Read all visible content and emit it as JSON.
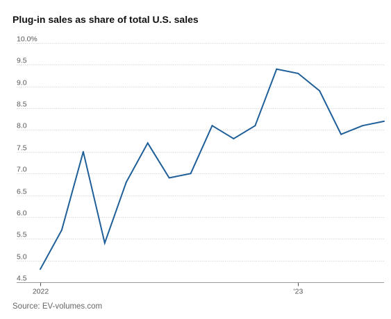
{
  "title": "Plug-in sales as share of total U.S. sales",
  "source": "Source: EV-volumes.com",
  "chart_data": {
    "type": "line",
    "title": "Plug-in sales as share of total U.S. sales",
    "xlabel": "",
    "ylabel": "",
    "ylim": [
      4.5,
      10.0
    ],
    "yticks": [
      4.5,
      5.0,
      5.5,
      6.0,
      6.5,
      7.0,
      7.5,
      8.0,
      8.5,
      9.0,
      9.5,
      10.0
    ],
    "ytick_labels": [
      "4.5",
      "5.0",
      "5.5",
      "6.0",
      "6.5",
      "7.0",
      "7.5",
      "8.0",
      "8.5",
      "9.0",
      "9.5",
      "10.0%"
    ],
    "x_tick_labels": [
      {
        "index": 0,
        "label": "2022"
      },
      {
        "index": 12,
        "label": "'23"
      }
    ],
    "x": [
      "2022-01",
      "2022-02",
      "2022-03",
      "2022-04",
      "2022-05",
      "2022-06",
      "2022-07",
      "2022-08",
      "2022-09",
      "2022-10",
      "2022-11",
      "2022-12",
      "2023-01",
      "2023-02",
      "2023-03",
      "2023-04",
      "2023-05"
    ],
    "series": [
      {
        "values": [
          4.8,
          5.7,
          7.5,
          5.4,
          6.8,
          7.7,
          6.9,
          7.0,
          8.1,
          7.8,
          8.1,
          9.4,
          9.3,
          8.9,
          7.9,
          8.1,
          8.2
        ]
      }
    ],
    "grid": true,
    "line_color": "#1f5f99"
  }
}
